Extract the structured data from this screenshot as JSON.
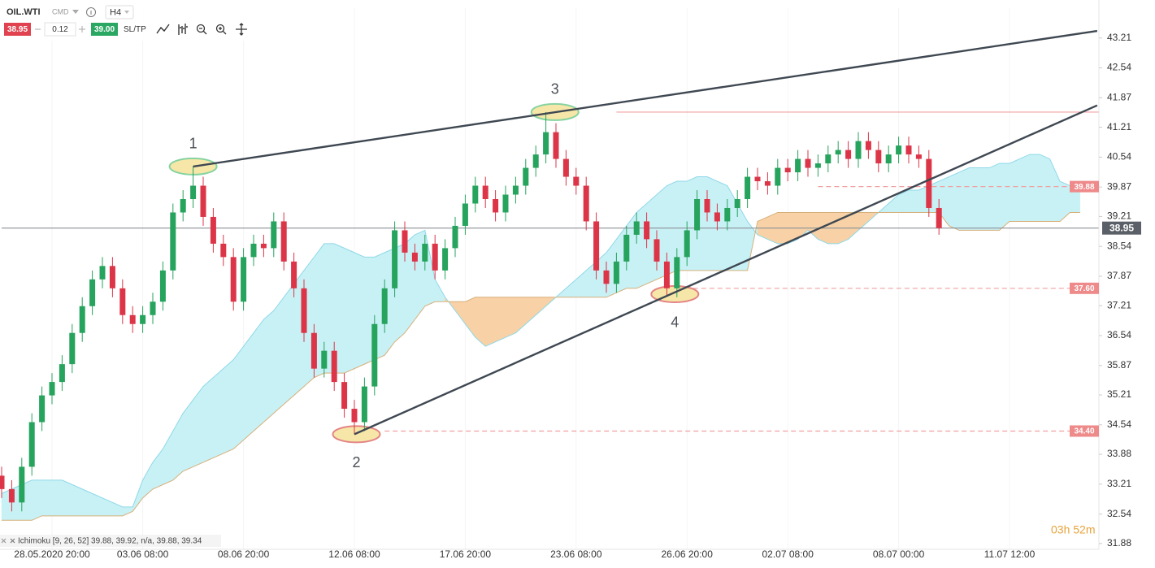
{
  "toolbar": {
    "symbol": "OIL.WTI",
    "market": "CMD",
    "timeframe": "H4",
    "sell": "38.95",
    "volume": "0.12",
    "buy": "39.00",
    "sltp": "SL/TP"
  },
  "indicator_legend": "Ichimoku [9, 26, 52] 39.88, 39.92, n/a, 39.88, 39.34",
  "timer": "03h 52m",
  "chart_data": {
    "type": "candlestick",
    "up_color": "#26a35c",
    "down_color": "#dc3548",
    "ylim": [
      31.75,
      43.88
    ],
    "yticks": [
      31.88,
      32.54,
      33.21,
      33.88,
      34.54,
      35.21,
      35.87,
      36.54,
      37.21,
      37.87,
      38.54,
      39.21,
      39.87,
      40.54,
      41.21,
      41.87,
      42.54,
      43.21
    ],
    "categories": [
      null,
      null,
      null,
      null,
      null,
      "28.05.2020 20:00",
      null,
      null,
      null,
      null,
      null,
      null,
      null,
      null,
      "03.06 08:00",
      null,
      null,
      null,
      null,
      null,
      null,
      null,
      null,
      null,
      "08.06 20:00",
      null,
      null,
      null,
      null,
      null,
      null,
      null,
      null,
      null,
      null,
      "12.06 08:00",
      null,
      null,
      null,
      null,
      null,
      null,
      null,
      null,
      null,
      null,
      "17.06 20:00",
      null,
      null,
      null,
      null,
      null,
      null,
      null,
      null,
      null,
      null,
      "23.06 08:00",
      null,
      null,
      null,
      null,
      null,
      null,
      null,
      null,
      null,
      null,
      "26.06 20:00",
      null,
      null,
      null,
      null,
      null,
      null,
      null,
      null,
      null,
      "02.07 08:00",
      null,
      null,
      null,
      null,
      null,
      null,
      null,
      null,
      null,
      null,
      "08.07 00:00",
      null,
      null,
      null,
      null,
      null,
      null,
      null,
      null,
      null,
      null,
      "11.07 12:00",
      null,
      null,
      null,
      null,
      null,
      null,
      null
    ],
    "open": [
      33.4,
      33.1,
      32.8,
      33.6,
      34.6,
      35.2,
      35.5,
      35.9,
      36.6,
      37.2,
      37.8,
      38.1,
      37.6,
      37.0,
      36.8,
      37.0,
      37.3,
      38.0,
      39.3,
      39.6,
      39.9,
      39.2,
      38.6,
      38.3,
      37.3,
      38.3,
      38.6,
      38.5,
      39.1,
      38.2,
      37.6,
      36.6,
      35.8,
      36.2,
      35.5,
      34.9,
      34.6,
      35.4,
      36.8,
      37.6,
      38.9,
      38.4,
      38.2,
      38.6,
      38.0,
      38.5,
      39.0,
      39.5,
      39.9,
      39.6,
      39.3,
      39.7,
      39.9,
      40.3,
      40.6,
      41.1,
      40.5,
      40.1,
      39.9,
      39.1,
      38.0,
      37.7,
      38.2,
      38.8,
      39.1,
      38.7,
      38.2,
      37.6,
      38.3,
      38.9,
      39.6,
      39.3,
      39.1,
      39.4,
      39.6,
      40.1,
      40.0,
      39.9,
      40.3,
      40.2,
      40.5,
      40.3,
      40.4,
      40.6,
      40.7,
      40.5,
      40.9,
      40.7,
      40.4,
      40.6,
      40.8,
      40.6,
      40.5,
      39.4,
      null,
      null,
      null,
      null,
      null,
      null,
      null,
      null,
      null,
      null,
      null,
      null,
      null,
      null
    ],
    "high": [
      33.6,
      33.3,
      33.8,
      34.8,
      35.4,
      35.7,
      36.1,
      36.8,
      37.4,
      38.0,
      38.3,
      38.3,
      37.8,
      37.2,
      37.2,
      37.5,
      38.2,
      39.5,
      39.8,
      40.33,
      40.1,
      39.4,
      38.8,
      38.5,
      38.5,
      38.8,
      38.8,
      39.3,
      39.3,
      38.4,
      37.8,
      36.8,
      36.4,
      36.4,
      35.7,
      35.1,
      35.6,
      37.0,
      37.8,
      39.1,
      39.1,
      38.6,
      38.8,
      38.8,
      38.7,
      39.2,
      39.7,
      40.1,
      40.1,
      39.8,
      39.9,
      40.1,
      40.5,
      40.8,
      41.55,
      41.3,
      40.7,
      40.3,
      40.1,
      39.3,
      38.2,
      38.4,
      39.0,
      39.3,
      39.3,
      38.9,
      38.4,
      38.5,
      39.1,
      39.8,
      39.8,
      39.5,
      39.6,
      39.8,
      40.3,
      40.3,
      40.2,
      40.5,
      40.5,
      40.7,
      40.7,
      40.6,
      40.8,
      40.9,
      40.9,
      41.1,
      41.1,
      40.9,
      40.8,
      41.0,
      41.0,
      40.8,
      40.7,
      39.6,
      null,
      null,
      null,
      null,
      null,
      null,
      null,
      null,
      null,
      null,
      null,
      null,
      null,
      null
    ],
    "low": [
      32.9,
      32.6,
      32.6,
      33.4,
      34.4,
      35.0,
      35.3,
      35.7,
      36.4,
      37.0,
      37.6,
      37.4,
      36.8,
      36.6,
      36.6,
      36.8,
      37.1,
      37.8,
      39.1,
      39.4,
      39.0,
      38.4,
      38.1,
      37.1,
      37.1,
      38.1,
      38.3,
      38.3,
      38.0,
      37.4,
      36.4,
      35.6,
      35.6,
      35.3,
      34.7,
      34.33,
      34.4,
      35.2,
      36.6,
      37.4,
      38.2,
      38.0,
      38.0,
      37.8,
      37.8,
      38.3,
      38.8,
      39.3,
      39.4,
      39.1,
      39.1,
      39.5,
      39.7,
      40.1,
      40.4,
      40.3,
      39.9,
      39.7,
      38.9,
      37.8,
      37.5,
      37.5,
      38.0,
      38.6,
      38.5,
      38.0,
      37.45,
      37.4,
      38.1,
      38.7,
      39.1,
      38.9,
      38.9,
      39.2,
      39.4,
      39.8,
      39.7,
      39.7,
      40.0,
      40.0,
      40.1,
      40.1,
      40.2,
      40.4,
      40.3,
      40.3,
      40.5,
      40.2,
      40.2,
      40.4,
      40.4,
      40.3,
      39.2,
      38.8,
      null,
      null,
      null,
      null,
      null,
      null,
      null,
      null,
      null,
      null,
      null,
      null,
      null,
      null
    ],
    "close": [
      33.1,
      32.8,
      33.6,
      34.6,
      35.2,
      35.5,
      35.9,
      36.6,
      37.2,
      37.8,
      38.1,
      37.6,
      37.0,
      36.8,
      37.0,
      37.3,
      38.0,
      39.3,
      39.6,
      39.9,
      39.2,
      38.6,
      38.3,
      37.3,
      38.3,
      38.6,
      38.5,
      39.1,
      38.2,
      37.6,
      36.6,
      35.8,
      36.2,
      35.5,
      34.9,
      34.6,
      35.4,
      36.8,
      37.6,
      38.9,
      38.4,
      38.2,
      38.6,
      38.0,
      38.5,
      39.0,
      39.5,
      39.9,
      39.6,
      39.3,
      39.7,
      39.9,
      40.3,
      40.6,
      41.1,
      40.5,
      40.1,
      39.9,
      39.1,
      38.0,
      37.7,
      38.2,
      38.8,
      39.1,
      38.7,
      38.2,
      37.6,
      38.3,
      38.9,
      39.6,
      39.3,
      39.1,
      39.4,
      39.6,
      40.1,
      40.0,
      39.9,
      40.3,
      40.2,
      40.5,
      40.3,
      40.4,
      40.6,
      40.7,
      40.5,
      40.9,
      40.7,
      40.4,
      40.6,
      40.8,
      40.6,
      40.5,
      39.4,
      38.95,
      null,
      null,
      null,
      null,
      null,
      null,
      null,
      null,
      null,
      null,
      null,
      null,
      null,
      null
    ],
    "cloud": {
      "up_color": "#c8f1f6",
      "down_color": "#f8d2a6",
      "a_color": "#8fd8e8",
      "b_color": "#d6b07a",
      "span_a": [
        33.0,
        33.1,
        33.2,
        33.3,
        33.3,
        33.3,
        33.3,
        33.2,
        33.1,
        33.0,
        32.9,
        32.8,
        32.7,
        32.7,
        33.3,
        33.7,
        34.0,
        34.4,
        34.8,
        35.1,
        35.4,
        35.6,
        35.8,
        36.0,
        36.3,
        36.6,
        36.9,
        37.1,
        37.4,
        37.7,
        38.0,
        38.3,
        38.6,
        38.6,
        38.5,
        38.4,
        38.3,
        38.3,
        38.4,
        38.5,
        38.6,
        38.8,
        38.9,
        37.8,
        37.4,
        37.1,
        36.8,
        36.5,
        36.3,
        36.4,
        36.5,
        36.6,
        36.8,
        37.0,
        37.2,
        37.4,
        37.6,
        37.8,
        38.0,
        38.2,
        38.4,
        38.7,
        39.0,
        39.3,
        39.5,
        39.7,
        39.9,
        40.0,
        40.0,
        40.1,
        40.1,
        40.0,
        39.9,
        39.5,
        39.1,
        38.8,
        38.7,
        38.6,
        38.6,
        38.7,
        38.9,
        38.7,
        38.6,
        38.6,
        38.7,
        38.9,
        39.1,
        39.3,
        39.5,
        39.7,
        39.8,
        39.8,
        39.9,
        40.0,
        40.1,
        40.2,
        40.3,
        40.3,
        40.3,
        40.4,
        40.4,
        40.5,
        40.6,
        40.6,
        40.5,
        40.0,
        39.9,
        39.8
      ],
      "span_b": [
        32.4,
        32.4,
        32.4,
        32.4,
        32.5,
        32.5,
        32.5,
        32.5,
        32.5,
        32.5,
        32.5,
        32.5,
        32.5,
        32.6,
        32.9,
        33.1,
        33.2,
        33.3,
        33.5,
        33.6,
        33.7,
        33.8,
        33.9,
        34.0,
        34.2,
        34.4,
        34.6,
        34.8,
        35.0,
        35.2,
        35.4,
        35.6,
        35.7,
        35.7,
        35.7,
        35.8,
        35.9,
        36.0,
        36.1,
        36.4,
        36.6,
        36.9,
        37.2,
        37.3,
        37.3,
        37.3,
        37.3,
        37.4,
        37.4,
        37.4,
        37.4,
        37.4,
        37.4,
        37.4,
        37.4,
        37.4,
        37.4,
        37.4,
        37.4,
        37.4,
        37.4,
        37.5,
        37.6,
        37.6,
        37.7,
        37.8,
        37.9,
        38.0,
        38.0,
        38.0,
        38.0,
        38.0,
        38.0,
        38.0,
        38.0,
        39.1,
        39.2,
        39.3,
        39.3,
        39.3,
        39.3,
        39.3,
        39.3,
        39.3,
        39.3,
        39.3,
        39.3,
        39.3,
        39.3,
        39.3,
        39.3,
        39.3,
        39.3,
        39.3,
        39.0,
        38.9,
        38.9,
        38.9,
        38.9,
        38.9,
        39.1,
        39.1,
        39.1,
        39.1,
        39.1,
        39.1,
        39.3,
        39.3
      ]
    },
    "levels": [
      {
        "value": 41.55,
        "color": "#f0a0a0",
        "dashed": false,
        "from": 61,
        "tag": false
      },
      {
        "value": 39.88,
        "color": "#f0a0a0",
        "dashed": true,
        "from": 81,
        "tag": true,
        "tag_color": "#ee8a8a",
        "tag_on_axis": false
      },
      {
        "value": 37.6,
        "label": "37.60",
        "color": "#f0a0a0",
        "dashed": true,
        "from": 67,
        "tag": true,
        "tag_color": "#ee8a8a",
        "tag_on_axis": false
      },
      {
        "value": 34.4,
        "label": "34.40",
        "color": "#f0a0a0",
        "dashed": true,
        "from": 38,
        "tag": true,
        "tag_color": "#ee8a8a",
        "tag_on_axis": false
      },
      {
        "value": 38.95,
        "color": "#8a8f96",
        "dashed": false,
        "from": 0,
        "tag": true,
        "tag_color": "#5b6068",
        "tag_on_axis": true
      }
    ],
    "trendlines": [
      {
        "points": [
          [
            19,
            40.33
          ],
          [
            108.7,
            43.37
          ]
        ],
        "color": "#3f4852"
      },
      {
        "points": [
          [
            35,
            34.33
          ],
          [
            108.7,
            41.7
          ]
        ],
        "color": "#3f4852"
      }
    ],
    "markers": [
      {
        "text": "1",
        "x": 19,
        "y": 40.33,
        "outline": "#86d3a0",
        "side": "above"
      },
      {
        "text": "2",
        "x": 35.2,
        "y": 34.33,
        "outline": "#e48484",
        "side": "below"
      },
      {
        "text": "3",
        "x": 54.9,
        "y": 41.55,
        "outline": "#86d3a0",
        "side": "above"
      },
      {
        "text": "4",
        "x": 66.8,
        "y": 37.47,
        "outline": "#e48484",
        "side": "below"
      }
    ]
  }
}
